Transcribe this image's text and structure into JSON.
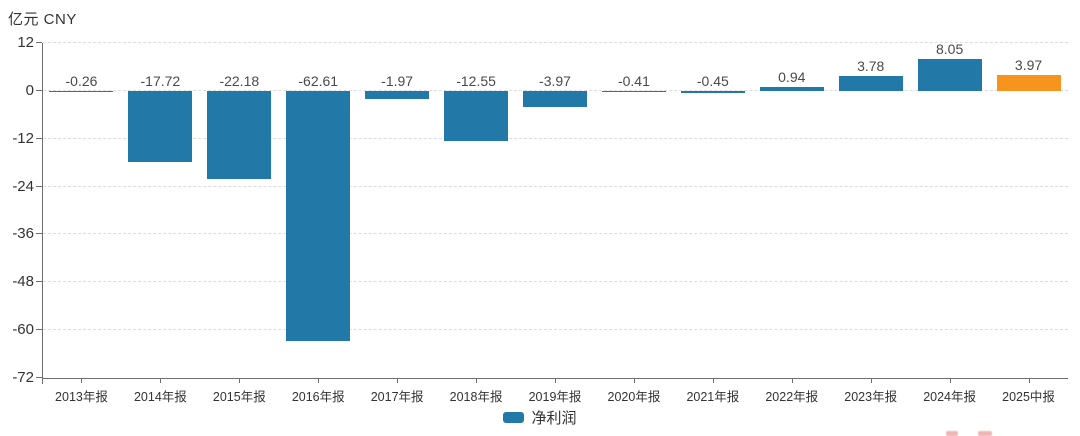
{
  "unit_label": "亿元 CNY",
  "legend": {
    "label": "净利润"
  },
  "colors": {
    "bar": "#2278a7",
    "highlight_bar": "#f7941e",
    "axis": "#6e6e6e",
    "grid": "#dcdcdc",
    "text": "#333333",
    "value_text": "#4a4a4a",
    "watermark": "#e05c5c"
  },
  "chart_data": {
    "type": "bar",
    "title": "",
    "xlabel": "",
    "ylabel": "亿元 CNY",
    "categories": [
      "2013年报",
      "2014年报",
      "2015年报",
      "2016年报",
      "2017年报",
      "2018年报",
      "2019年报",
      "2020年报",
      "2021年报",
      "2022年报",
      "2023年报",
      "2024年报",
      "2025中报"
    ],
    "series": [
      {
        "name": "净利润",
        "values": [
          -0.26,
          -17.72,
          -22.18,
          -62.61,
          -1.97,
          -12.55,
          -3.97,
          -0.41,
          -0.45,
          0.94,
          3.78,
          8.05,
          3.97
        ]
      }
    ],
    "value_labels": [
      "-0.26",
      "-17.72",
      "-22.18",
      "-62.61",
      "-1.97",
      "-12.55",
      "-3.97",
      "-0.41",
      "-0.45",
      "0.94",
      "3.78",
      "8.05",
      "3.97"
    ],
    "yticks": [
      12,
      0,
      -12,
      -24,
      -36,
      -48,
      -60,
      -72
    ],
    "ylim": [
      -72,
      12
    ],
    "highlight_index": 12,
    "grid": "horizontal-dashed",
    "legend_position": "bottom-center"
  }
}
